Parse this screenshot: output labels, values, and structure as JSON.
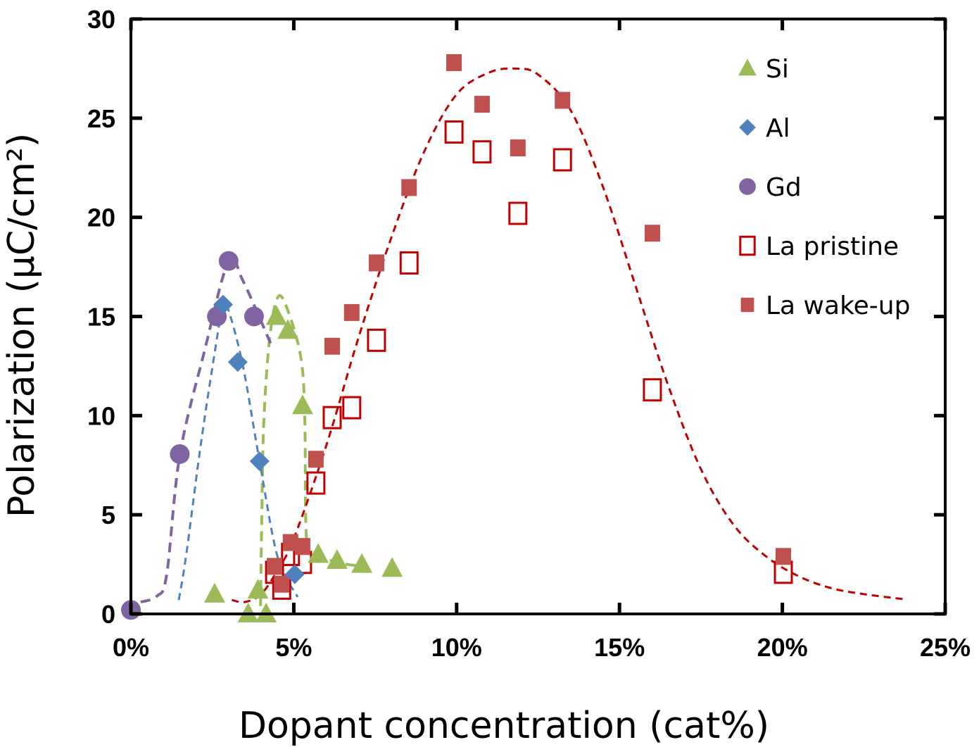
{
  "chart_data": {
    "type": "scatter",
    "title": "",
    "xlabel": "Dopant concentration (cat%)",
    "ylabel": "Polarization (μC/cm²)",
    "xlim": [
      0,
      25
    ],
    "ylim": [
      0,
      30
    ],
    "x_ticks": [
      "0%",
      "5%",
      "10%",
      "15%",
      "20%",
      "25%"
    ],
    "x_tick_values": [
      0,
      5,
      10,
      15,
      20,
      25
    ],
    "y_ticks": [
      "0",
      "5",
      "10",
      "15",
      "20",
      "25",
      "30"
    ],
    "y_tick_values": [
      0,
      5,
      10,
      15,
      20,
      25,
      30
    ],
    "grid": false,
    "legend_position": "top-right",
    "series": [
      {
        "name": "Si",
        "marker": "triangle",
        "color": "#9bbb59",
        "points": [
          [
            2.57,
            1.0
          ],
          [
            3.6,
            0.0
          ],
          [
            3.9,
            1.2
          ],
          [
            4.15,
            0.0
          ],
          [
            4.47,
            15.0
          ],
          [
            4.82,
            14.3
          ],
          [
            5.27,
            10.5
          ],
          [
            5.75,
            3.0
          ],
          [
            6.33,
            2.7
          ],
          [
            7.09,
            2.5
          ],
          [
            8.02,
            2.3
          ]
        ],
        "trend": [
          [
            3.98,
            0.4
          ],
          [
            4.02,
            5
          ],
          [
            4.08,
            9.7
          ],
          [
            4.26,
            13.9
          ],
          [
            4.52,
            16.0
          ],
          [
            4.84,
            15.2
          ],
          [
            5.23,
            12.8
          ],
          [
            5.34,
            9.7
          ],
          [
            5.4,
            3.6
          ],
          [
            5.75,
            3.0
          ],
          [
            6.33,
            2.6
          ],
          [
            7.09,
            2.4
          ]
        ]
      },
      {
        "name": "Al",
        "marker": "diamond",
        "color": "#4f81bd",
        "points": [
          [
            2.83,
            15.6
          ],
          [
            3.28,
            12.7
          ],
          [
            3.95,
            7.7
          ],
          [
            5.03,
            2.0
          ]
        ],
        "trend": [
          [
            1.47,
            0.7
          ],
          [
            1.7,
            3
          ],
          [
            2.1,
            8
          ],
          [
            2.46,
            12.0
          ],
          [
            2.83,
            15.6
          ],
          [
            3.0,
            15.3
          ],
          [
            3.44,
            12.5
          ],
          [
            3.95,
            7.7
          ],
          [
            4.5,
            2.9
          ],
          [
            5.12,
            0.85
          ]
        ]
      },
      {
        "name": "Gd",
        "marker": "circle",
        "color": "#8064a2",
        "points": [
          [
            0.0,
            0.2
          ],
          [
            1.5,
            8.06
          ],
          [
            2.64,
            15.0
          ],
          [
            3.0,
            17.8
          ],
          [
            3.78,
            15.0
          ]
        ],
        "trend": [
          [
            0.3,
            0.6
          ],
          [
            0.8,
            0.9
          ],
          [
            1.1,
            2
          ],
          [
            1.5,
            8.0
          ],
          [
            2.25,
            13.2
          ],
          [
            3.0,
            17.8
          ],
          [
            3.44,
            16.8
          ],
          [
            4.3,
            13.6
          ]
        ]
      },
      {
        "name": "La pristine",
        "marker": "open-square",
        "color": "#c00000",
        "points": [
          [
            4.41,
            2.1
          ],
          [
            4.63,
            1.3
          ],
          [
            4.9,
            3.0
          ],
          [
            5.27,
            2.6
          ],
          [
            5.68,
            6.6
          ],
          [
            6.18,
            9.9
          ],
          [
            6.78,
            10.4
          ],
          [
            7.54,
            13.8
          ],
          [
            8.54,
            17.7
          ],
          [
            9.92,
            24.3
          ],
          [
            10.78,
            23.3
          ],
          [
            11.88,
            20.2
          ],
          [
            13.25,
            22.9
          ],
          [
            16.01,
            11.3
          ],
          [
            20.03,
            2.1
          ]
        ]
      },
      {
        "name": "La wake-up",
        "marker": "filled-square",
        "color": "#c0504d",
        "points": [
          [
            4.41,
            2.4
          ],
          [
            4.63,
            1.5
          ],
          [
            4.9,
            3.6
          ],
          [
            5.27,
            3.4
          ],
          [
            5.68,
            7.8
          ],
          [
            6.18,
            13.5
          ],
          [
            6.78,
            15.2
          ],
          [
            7.54,
            17.7
          ],
          [
            8.54,
            21.5
          ],
          [
            9.92,
            27.8
          ],
          [
            10.78,
            25.7
          ],
          [
            11.88,
            23.5
          ],
          [
            13.25,
            25.9
          ],
          [
            16.01,
            19.2
          ],
          [
            20.03,
            2.9
          ]
        ],
        "trend": [
          [
            3.1,
            0.7
          ],
          [
            3.5,
            0.6
          ],
          [
            4,
            1.0
          ],
          [
            4.5,
            2.2
          ],
          [
            5,
            3.8
          ],
          [
            6,
            8.5
          ],
          [
            7,
            14
          ],
          [
            8,
            19
          ],
          [
            9,
            23.3
          ],
          [
            10,
            26.2
          ],
          [
            11,
            27.3
          ],
          [
            11.8,
            27.5
          ],
          [
            12.5,
            27.2
          ],
          [
            13.5,
            25.4
          ],
          [
            14.5,
            21.5
          ],
          [
            15.5,
            16.5
          ],
          [
            16.5,
            11.5
          ],
          [
            17.5,
            7.3
          ],
          [
            18.5,
            4.5
          ],
          [
            19.5,
            2.9
          ],
          [
            20.5,
            1.9
          ],
          [
            21.5,
            1.3
          ],
          [
            22.5,
            1.0
          ],
          [
            23.7,
            0.75
          ]
        ]
      }
    ]
  }
}
